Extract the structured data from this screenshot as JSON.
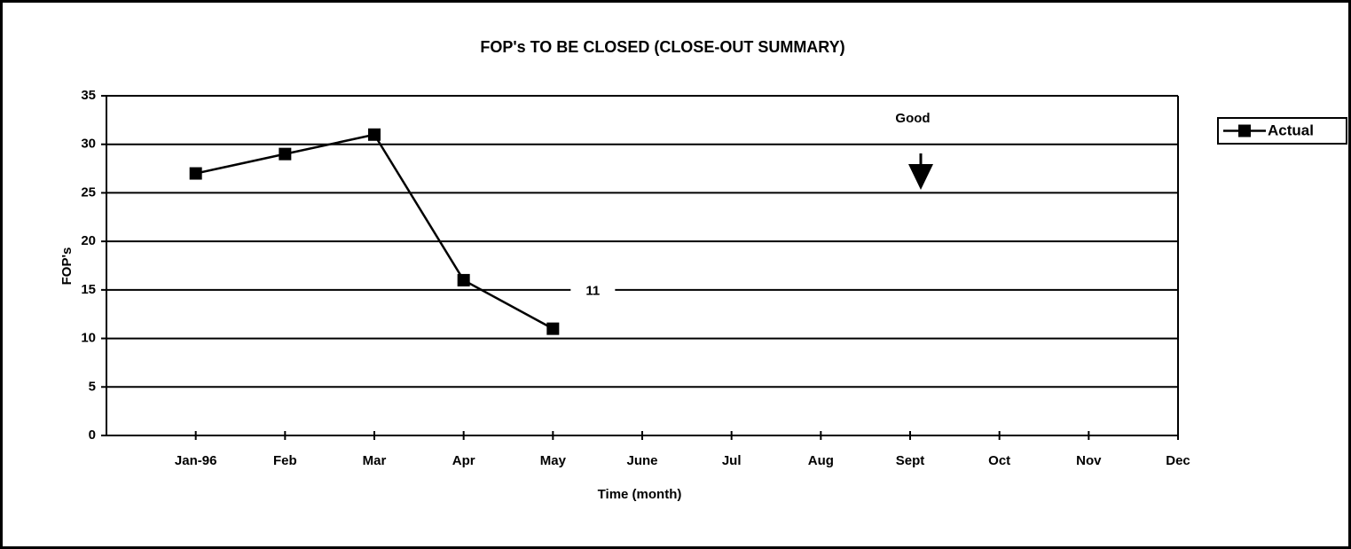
{
  "chart_data": {
    "type": "line",
    "title": "FOP's TO BE CLOSED (CLOSE-OUT SUMMARY)",
    "x_label": "Time (month)",
    "y_label": "FOP's",
    "categories": [
      "Jan-96",
      "Feb",
      "Mar",
      "Apr",
      "May",
      "June",
      "Jul",
      "Aug",
      "Sept",
      "Oct",
      "Nov",
      "Dec"
    ],
    "series": [
      {
        "name": "Actual",
        "color": "#000000",
        "values": [
          27,
          29,
          31,
          16,
          11,
          null,
          null,
          null,
          null,
          null,
          null,
          null
        ]
      }
    ],
    "data_labels": {
      "4": true
    },
    "annotations": [
      {
        "text": "Good"
      }
    ],
    "ylim": [
      0,
      35
    ],
    "yticks": [
      0,
      5,
      10,
      15,
      20,
      25,
      30,
      35
    ],
    "grid": true,
    "legend": "right"
  }
}
